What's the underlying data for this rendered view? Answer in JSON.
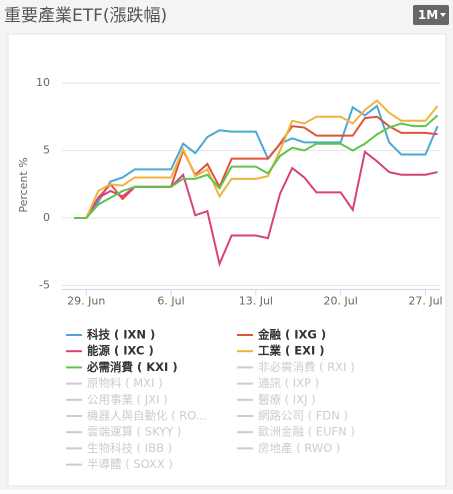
{
  "header": {
    "title": "重要產業ETF(漲跌幅)",
    "range_button": "1M"
  },
  "chart_data": {
    "type": "line",
    "y_label": "Percent %",
    "x": [
      28,
      29,
      30,
      31,
      32,
      33,
      34,
      35,
      36,
      37,
      38,
      39,
      40,
      41,
      42,
      43,
      44,
      45,
      46,
      47,
      48,
      49,
      50,
      51,
      52,
      53,
      54,
      55,
      56,
      57,
      58
    ],
    "xlim": [
      27,
      58.2
    ],
    "xticks": [
      {
        "value": 29,
        "label": "29. Jun"
      },
      {
        "value": 36,
        "label": "6. Jul"
      },
      {
        "value": 43,
        "label": "13. Jul"
      },
      {
        "value": 50,
        "label": "20. Jul"
      },
      {
        "value": 57,
        "label": "27. Jul"
      }
    ],
    "ylim": [
      -5.3,
      12
    ],
    "yticks": [
      -5,
      0,
      5,
      10
    ],
    "grid": true,
    "series": [
      {
        "name": "科技 ( IXN )",
        "color": "#4aa8d8",
        "values": [
          0,
          0,
          1.2,
          2.7,
          3,
          3.6,
          3.6,
          3.6,
          3.6,
          5.5,
          4.8,
          6,
          6.5,
          6.4,
          6.4,
          6.4,
          4.4,
          5.5,
          5.9,
          5.6,
          5.6,
          5.6,
          5.6,
          8.2,
          7.6,
          8.3,
          5.6,
          4.7,
          4.7,
          4.7,
          6.8
        ]
      },
      {
        "name": "金融 ( IXG )",
        "color": "#e0523a",
        "values": [
          0,
          0,
          1.5,
          2.5,
          1.4,
          2.3,
          2.3,
          2.3,
          2.3,
          5,
          3.2,
          4,
          2.3,
          4.4,
          4.4,
          4.4,
          4.4,
          5.5,
          6.8,
          6.7,
          6.1,
          6.1,
          6.1,
          6.1,
          7.4,
          7.5,
          6.8,
          6.3,
          6.3,
          6.3,
          6.2
        ]
      },
      {
        "name": "能源 ( IXC )",
        "color": "#d9417a",
        "values": [
          0,
          0,
          1.5,
          2,
          1.6,
          2.3,
          2.3,
          2.3,
          2.3,
          3.2,
          0.2,
          0.5,
          -3.4,
          -1.3,
          -1.3,
          -1.3,
          -1.5,
          1.8,
          3.7,
          3,
          1.9,
          1.9,
          1.9,
          0.6,
          4.9,
          4.2,
          3.4,
          3.2,
          3.2,
          3.2,
          3.4
        ]
      },
      {
        "name": "工業 ( EXI )",
        "color": "#f0b43c",
        "values": [
          0,
          0,
          2,
          2.5,
          2.4,
          3,
          3,
          3,
          3,
          5.1,
          3.1,
          3.6,
          1.6,
          2.9,
          2.9,
          2.9,
          3.1,
          5,
          7.2,
          7,
          7.5,
          7.5,
          7.5,
          7,
          8,
          8.7,
          7.8,
          7.2,
          7.2,
          7.2,
          8.3
        ]
      },
      {
        "name": "必需消費 ( KXI )",
        "color": "#5ec44a",
        "values": [
          0,
          0,
          1,
          1.5,
          2,
          2.3,
          2.3,
          2.3,
          2.3,
          2.9,
          2.9,
          3.2,
          2.2,
          3.8,
          3.8,
          3.8,
          3.3,
          4.6,
          5.2,
          5,
          5.5,
          5.5,
          5.5,
          5,
          5.5,
          6.2,
          6.7,
          7,
          6.8,
          6.8,
          7.6
        ]
      }
    ],
    "hidden_series": [
      "非必需消費 ( RXI )",
      "原物料 ( MXI )",
      "通訊 ( IXP )",
      "公用事業 ( JXI )",
      "醫療 ( IXJ )",
      "機器人與自動化 ( RO...",
      "網路公司 ( FDN )",
      "雲端運算 ( SKYY )",
      "歐洲金融 ( EUFN )",
      "生物科技 ( IBB )",
      "房地產 ( RWO )",
      "半導體 ( SOXX )"
    ],
    "hidden_color": "#cccccc"
  }
}
